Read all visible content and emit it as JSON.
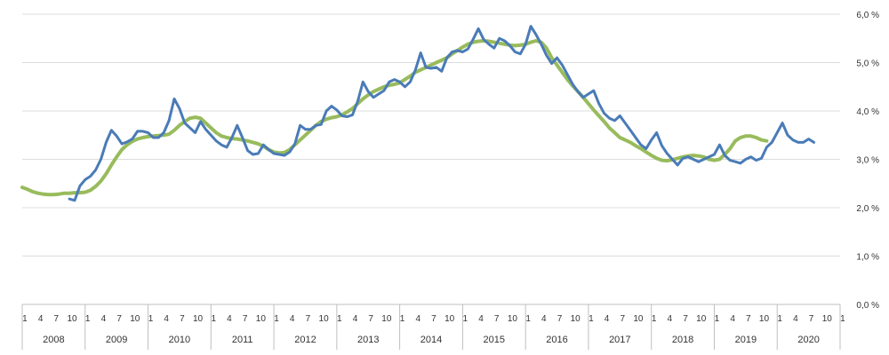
{
  "chart_data": {
    "type": "line",
    "title": "",
    "xlabel": "",
    "ylabel": "",
    "ylim": [
      0,
      6
    ],
    "y_ticks": [
      "0,0 %",
      "1,0 %",
      "2,0 %",
      "3,0 %",
      "4,0 %",
      "5,0 %",
      "6,0 %"
    ],
    "y_axis_side": "right",
    "grid": true,
    "legend": "none",
    "month_tick_labels": [
      "1",
      "4",
      "7",
      "10"
    ],
    "final_tick_label": "1",
    "years": [
      "2008",
      "2009",
      "2010",
      "2011",
      "2012",
      "2013",
      "2014",
      "2015",
      "2016",
      "2017",
      "2018",
      "2019",
      "2020"
    ],
    "x_start": "2008-01",
    "series": [
      {
        "color": "#4a7bb7",
        "start": "2008-10",
        "values": [
          2.18,
          2.15,
          2.45,
          2.58,
          2.65,
          2.78,
          3.0,
          3.35,
          3.6,
          3.48,
          3.32,
          3.36,
          3.42,
          3.58,
          3.58,
          3.55,
          3.45,
          3.45,
          3.55,
          3.8,
          4.25,
          4.05,
          3.75,
          3.65,
          3.55,
          3.78,
          3.62,
          3.5,
          3.38,
          3.3,
          3.25,
          3.45,
          3.7,
          3.45,
          3.18,
          3.1,
          3.12,
          3.3,
          3.2,
          3.12,
          3.1,
          3.08,
          3.15,
          3.32,
          3.7,
          3.62,
          3.62,
          3.7,
          3.72,
          4.0,
          4.1,
          4.02,
          3.9,
          3.88,
          3.92,
          4.2,
          4.6,
          4.4,
          4.28,
          4.35,
          4.42,
          4.6,
          4.65,
          4.6,
          4.5,
          4.6,
          4.85,
          5.2,
          4.9,
          4.88,
          4.9,
          4.82,
          5.1,
          5.22,
          5.25,
          5.22,
          5.28,
          5.48,
          5.7,
          5.48,
          5.38,
          5.3,
          5.5,
          5.45,
          5.35,
          5.22,
          5.18,
          5.38,
          5.75,
          5.58,
          5.38,
          5.15,
          4.98,
          5.1,
          4.95,
          4.75,
          4.55,
          4.4,
          4.28,
          4.35,
          4.42,
          4.15,
          3.95,
          3.85,
          3.8,
          3.9,
          3.75,
          3.6,
          3.45,
          3.3,
          3.22,
          3.4,
          3.55,
          3.28,
          3.12,
          3.0,
          2.88,
          3.02,
          3.05,
          3.0,
          2.95,
          3.0,
          3.05,
          3.1,
          3.3,
          3.08,
          2.98,
          2.95,
          2.92,
          3.0,
          3.05,
          2.98,
          3.02,
          3.25,
          3.35,
          3.55,
          3.75,
          3.5,
          3.4,
          3.35,
          3.35,
          3.42,
          3.35
        ]
      },
      {
        "color": "#98bb5c",
        "start": "2008-01",
        "values": [
          2.42,
          2.38,
          2.33,
          2.3,
          2.28,
          2.27,
          2.27,
          2.28,
          2.3,
          2.3,
          2.31,
          2.31,
          2.32,
          2.36,
          2.44,
          2.55,
          2.7,
          2.88,
          3.05,
          3.2,
          3.3,
          3.37,
          3.42,
          3.45,
          3.47,
          3.48,
          3.49,
          3.5,
          3.52,
          3.6,
          3.7,
          3.78,
          3.85,
          3.87,
          3.85,
          3.75,
          3.65,
          3.55,
          3.48,
          3.45,
          3.43,
          3.42,
          3.4,
          3.38,
          3.35,
          3.32,
          3.27,
          3.2,
          3.15,
          3.13,
          3.14,
          3.2,
          3.3,
          3.4,
          3.5,
          3.6,
          3.7,
          3.78,
          3.83,
          3.86,
          3.88,
          3.92,
          3.98,
          4.05,
          4.15,
          4.25,
          4.33,
          4.4,
          4.45,
          4.5,
          4.53,
          4.55,
          4.58,
          4.65,
          4.72,
          4.8,
          4.85,
          4.9,
          4.95,
          5.0,
          5.05,
          5.1,
          5.18,
          5.25,
          5.32,
          5.38,
          5.42,
          5.44,
          5.45,
          5.44,
          5.42,
          5.4,
          5.38,
          5.36,
          5.35,
          5.36,
          5.38,
          5.42,
          5.45,
          5.42,
          5.3,
          5.1,
          4.95,
          4.8,
          4.65,
          4.52,
          4.4,
          4.28,
          4.15,
          4.02,
          3.9,
          3.78,
          3.65,
          3.55,
          3.45,
          3.4,
          3.35,
          3.28,
          3.22,
          3.15,
          3.08,
          3.02,
          2.98,
          2.97,
          2.99,
          3.02,
          3.05,
          3.07,
          3.08,
          3.07,
          3.05,
          3.0,
          2.98,
          3.0,
          3.1,
          3.22,
          3.38,
          3.45,
          3.48,
          3.48,
          3.45,
          3.4,
          3.38
        ]
      }
    ]
  }
}
